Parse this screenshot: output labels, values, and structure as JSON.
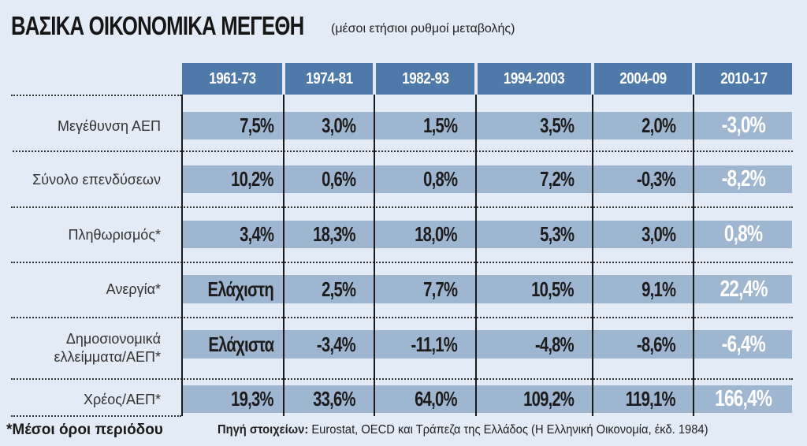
{
  "title": {
    "main": "ΒΑΣΙΚΑ ΟΙΚΟΝΟΜΙΚΑ ΜΕΓΕΘΗ",
    "subtitle": "(μέσοι ετήσιοι ρυθμοί μεταβολής)"
  },
  "columns": [
    "1961-73",
    "1974-81",
    "1982-93",
    "1994-2003",
    "2004-09",
    "2010-17"
  ],
  "rows": [
    {
      "label": "Μεγέθυνση ΑΕΠ",
      "values": [
        "7,5%",
        "3,0%",
        "1,5%",
        "3,5%",
        "2,0%",
        "-3,0%"
      ]
    },
    {
      "label": "Σύνολο επενδύσεων",
      "values": [
        "10,2%",
        "0,6%",
        "0,8%",
        "7,2%",
        "-0,3%",
        "-8,2%"
      ]
    },
    {
      "label": "Πληθωρισμός*",
      "values": [
        "3,4%",
        "18,3%",
        "18,0%",
        "5,3%",
        "3,0%",
        "0,8%"
      ]
    },
    {
      "label": "Ανεργία*",
      "values": [
        "Ελάχιστη",
        "2,5%",
        "7,7%",
        "10,5%",
        "9,1%",
        "22,4%"
      ]
    },
    {
      "label_line1": "Δημοσιονομικά",
      "label_line2": "ελλείμματα/ΑΕΠ*",
      "values": [
        "Ελάχιστα",
        "-3,4%",
        "-11,1%",
        "-4,8%",
        "-8,6%",
        "-6,4%"
      ]
    },
    {
      "label": "Χρέος/ΑΕΠ*",
      "values": [
        "19,3%",
        "33,6%",
        "64,0%",
        "109,2%",
        "119,1%",
        "166,4%"
      ]
    }
  ],
  "footer": {
    "footnote": "*Μέσοι όροι περιόδου",
    "source_label": "Πηγή στοιχείων:",
    "source_text": " Eurostat, OECD και Τράπεζα της Ελλάδος (Η Ελληνική Οικονομία, έκδ. 1984)"
  },
  "colors": {
    "background": "#e3ebf6",
    "header": "#4e79a8",
    "band": "#9fb6d0",
    "highlight_text": "#ffffff"
  },
  "chart_data": {
    "type": "table",
    "title": "ΒΑΣΙΚΑ ΟΙΚΟΝΟΜΙΚΑ ΜΕΓΕΘΗ (μέσοι ετήσιοι ρυθμοί μεταβολής)",
    "categories": [
      "1961-73",
      "1974-81",
      "1982-93",
      "1994-2003",
      "2004-09",
      "2010-17"
    ],
    "series": [
      {
        "name": "Μεγέθυνση ΑΕΠ",
        "values": [
          7.5,
          3.0,
          1.5,
          3.5,
          2.0,
          -3.0
        ]
      },
      {
        "name": "Σύνολο επενδύσεων",
        "values": [
          10.2,
          0.6,
          0.8,
          7.2,
          -0.3,
          -8.2
        ]
      },
      {
        "name": "Πληθωρισμός*",
        "values": [
          3.4,
          18.3,
          18.0,
          5.3,
          3.0,
          0.8
        ]
      },
      {
        "name": "Ανεργία*",
        "values": [
          "Ελάχιστη",
          2.5,
          7.7,
          10.5,
          9.1,
          22.4
        ]
      },
      {
        "name": "Δημοσιονομικά ελλείμματα/ΑΕΠ*",
        "values": [
          "Ελάχιστα",
          -3.4,
          -11.1,
          -4.8,
          -8.6,
          -6.4
        ]
      },
      {
        "name": "Χρέος/ΑΕΠ*",
        "values": [
          19.3,
          33.6,
          64.0,
          109.2,
          119.1,
          166.4
        ]
      }
    ],
    "unit": "%",
    "notes": [
      "*Μέσοι όροι περιόδου",
      "Πηγή στοιχείων: Eurostat, OECD και Τράπεζα της Ελλάδος (Η Ελληνική Οικονομία, έκδ. 1984)"
    ]
  }
}
